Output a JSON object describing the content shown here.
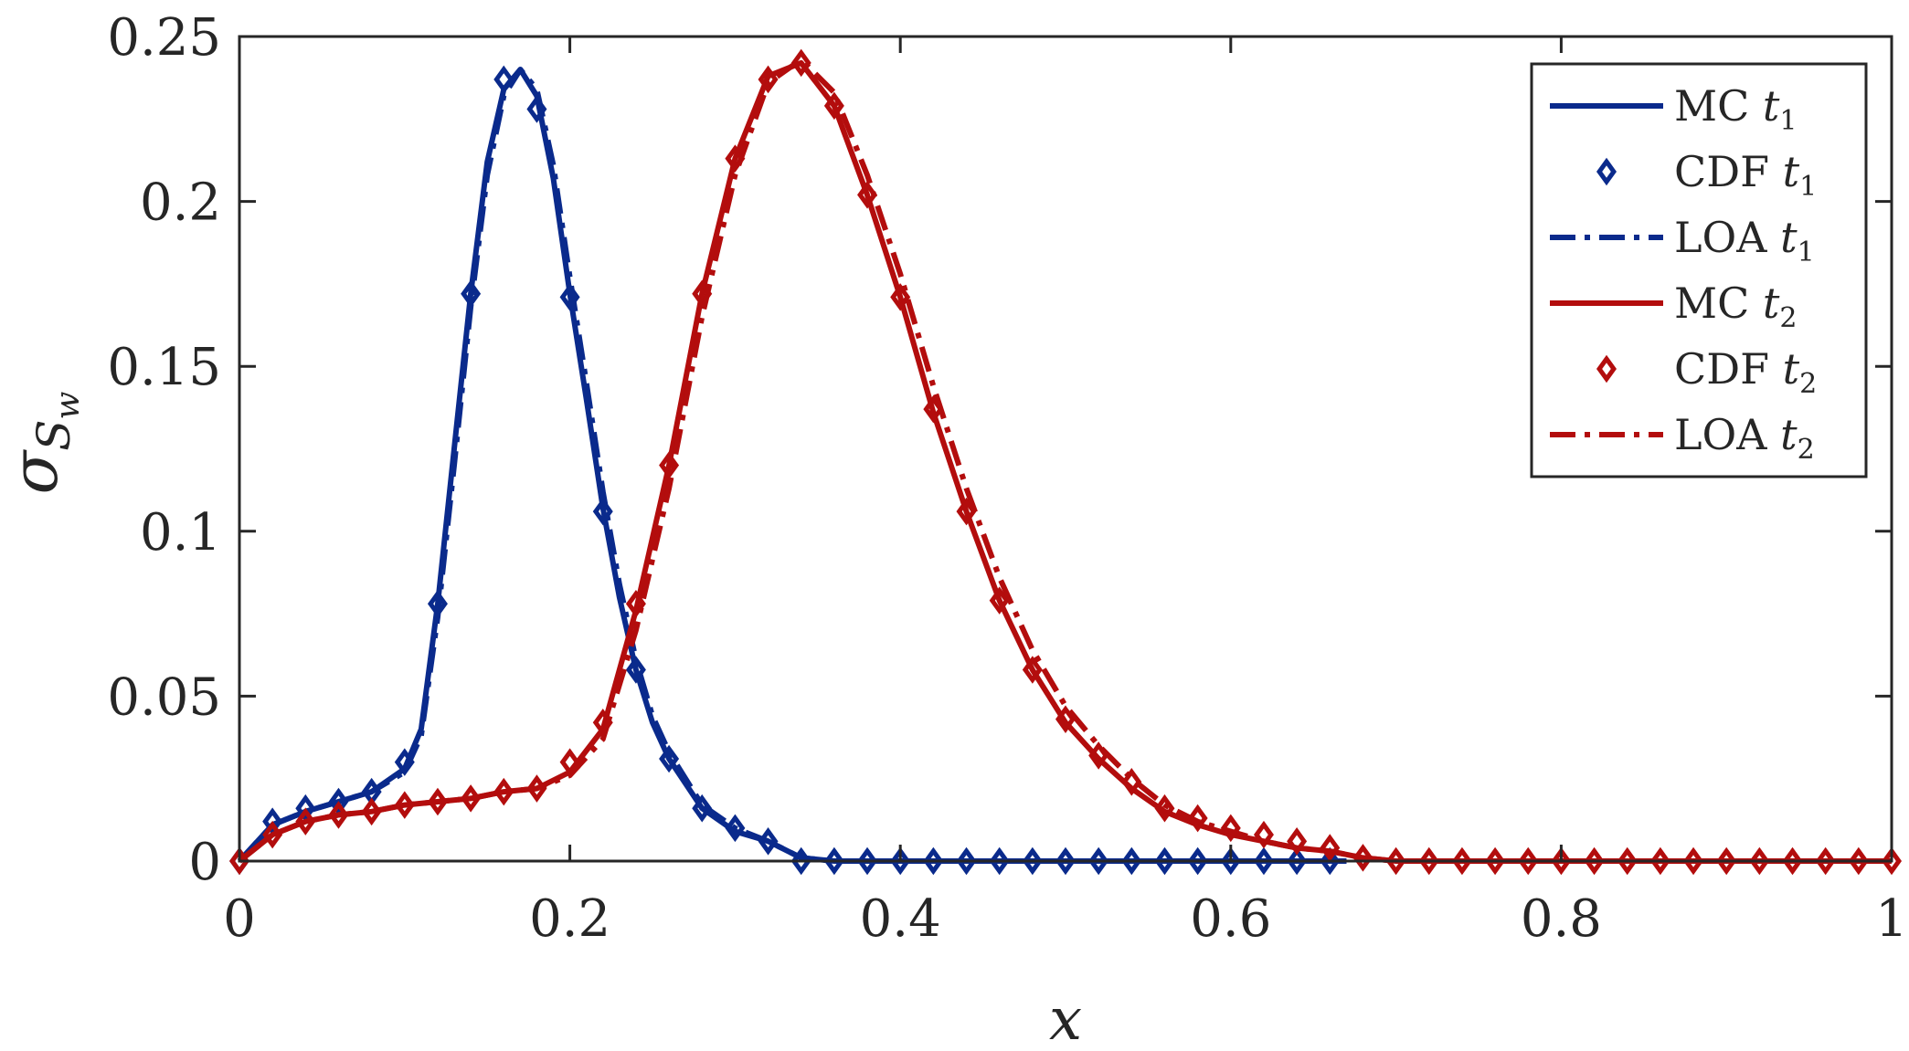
{
  "chart_data": {
    "type": "line",
    "title": "",
    "xlabel": "x",
    "ylabel_main": "σ",
    "ylabel_sub": "S",
    "ylabel_subsub": "w",
    "xlim": [
      0,
      1
    ],
    "ylim": [
      0,
      0.25
    ],
    "xticks": [
      0,
      0.2,
      0.4,
      0.6,
      0.8,
      1
    ],
    "xtick_labels": [
      "0",
      "0.2",
      "0.4",
      "0.6",
      "0.8",
      "1"
    ],
    "yticks": [
      0,
      0.05,
      0.1,
      0.15,
      0.2,
      0.25
    ],
    "ytick_labels": [
      "0",
      "0.05",
      "0.1",
      "0.15",
      "0.2",
      "0.25"
    ],
    "grid": false,
    "legend_position": "top-right",
    "colors": {
      "t1": "#0a2a8c",
      "t2": "#b30d0d",
      "axis": "#262626"
    },
    "series": [
      {
        "name": "MC t1",
        "label_main": "MC ",
        "label_var": "t",
        "label_sub": "1",
        "style": "solid",
        "color": "#0a2a8c",
        "x": [
          0,
          0.02,
          0.04,
          0.06,
          0.08,
          0.1,
          0.11,
          0.12,
          0.13,
          0.14,
          0.15,
          0.16,
          0.17,
          0.18,
          0.19,
          0.2,
          0.21,
          0.22,
          0.23,
          0.24,
          0.25,
          0.26,
          0.28,
          0.3,
          0.32,
          0.34,
          0.36,
          0.4,
          0.5,
          0.6,
          0.67
        ],
        "y": [
          0,
          0.011,
          0.015,
          0.018,
          0.021,
          0.028,
          0.04,
          0.078,
          0.125,
          0.172,
          0.212,
          0.234,
          0.24,
          0.232,
          0.207,
          0.172,
          0.14,
          0.107,
          0.08,
          0.058,
          0.042,
          0.031,
          0.016,
          0.009,
          0.006,
          0.001,
          0,
          0,
          0,
          0,
          0
        ]
      },
      {
        "name": "CDF t1",
        "label_main": "CDF ",
        "label_var": "t",
        "label_sub": "1",
        "style": "marker",
        "color": "#0a2a8c",
        "x": [
          0,
          0.02,
          0.04,
          0.06,
          0.08,
          0.1,
          0.12,
          0.14,
          0.16,
          0.18,
          0.2,
          0.22,
          0.24,
          0.26,
          0.28,
          0.3,
          0.32,
          0.34,
          0.36,
          0.38,
          0.4,
          0.42,
          0.44,
          0.46,
          0.48,
          0.5,
          0.52,
          0.54,
          0.56,
          0.58,
          0.6,
          0.62,
          0.64,
          0.66
        ],
        "y": [
          0,
          0.012,
          0.016,
          0.018,
          0.021,
          0.03,
          0.078,
          0.172,
          0.237,
          0.228,
          0.171,
          0.106,
          0.058,
          0.031,
          0.016,
          0.01,
          0.006,
          0,
          0,
          0,
          0,
          0,
          0,
          0,
          0,
          0,
          0,
          0,
          0,
          0,
          0,
          0,
          0,
          0
        ]
      },
      {
        "name": "LOA t1",
        "label_main": "LOA ",
        "label_var": "t",
        "label_sub": "1",
        "style": "dashdot",
        "color": "#0a2a8c",
        "x": [
          0,
          0.02,
          0.04,
          0.06,
          0.08,
          0.1,
          0.11,
          0.12,
          0.13,
          0.14,
          0.15,
          0.16,
          0.17,
          0.18,
          0.19,
          0.2,
          0.21,
          0.22,
          0.23,
          0.24,
          0.25,
          0.26,
          0.28,
          0.3,
          0.32,
          0.34,
          0.36,
          0.4,
          0.5,
          0.6,
          0.67
        ],
        "y": [
          0,
          0.011,
          0.015,
          0.018,
          0.021,
          0.027,
          0.038,
          0.074,
          0.12,
          0.168,
          0.208,
          0.232,
          0.24,
          0.234,
          0.211,
          0.177,
          0.145,
          0.112,
          0.084,
          0.061,
          0.044,
          0.033,
          0.017,
          0.01,
          0.006,
          0.001,
          0,
          0,
          0,
          0,
          0
        ]
      },
      {
        "name": "MC t2",
        "label_main": "MC ",
        "label_var": "t",
        "label_sub": "2",
        "style": "solid",
        "color": "#b30d0d",
        "x": [
          0,
          0.02,
          0.04,
          0.06,
          0.08,
          0.1,
          0.12,
          0.14,
          0.16,
          0.18,
          0.2,
          0.22,
          0.24,
          0.26,
          0.28,
          0.3,
          0.32,
          0.34,
          0.36,
          0.38,
          0.4,
          0.42,
          0.44,
          0.46,
          0.48,
          0.5,
          0.52,
          0.54,
          0.56,
          0.58,
          0.6,
          0.62,
          0.64,
          0.66,
          0.68,
          0.7,
          0.8,
          1
        ],
        "y": [
          0,
          0.008,
          0.012,
          0.014,
          0.015,
          0.017,
          0.018,
          0.019,
          0.021,
          0.022,
          0.027,
          0.04,
          0.076,
          0.12,
          0.172,
          0.213,
          0.238,
          0.242,
          0.229,
          0.202,
          0.171,
          0.136,
          0.106,
          0.079,
          0.058,
          0.042,
          0.031,
          0.022,
          0.015,
          0.011,
          0.008,
          0.006,
          0.004,
          0.003,
          0.001,
          0,
          0,
          0
        ]
      },
      {
        "name": "CDF t2",
        "label_main": "CDF ",
        "label_var": "t",
        "label_sub": "2",
        "style": "marker",
        "color": "#b30d0d",
        "x": [
          0,
          0.02,
          0.04,
          0.06,
          0.08,
          0.1,
          0.12,
          0.14,
          0.16,
          0.18,
          0.2,
          0.22,
          0.24,
          0.26,
          0.28,
          0.3,
          0.32,
          0.34,
          0.36,
          0.38,
          0.4,
          0.42,
          0.44,
          0.46,
          0.48,
          0.5,
          0.52,
          0.54,
          0.56,
          0.58,
          0.6,
          0.62,
          0.64,
          0.66,
          0.68,
          0.7,
          0.72,
          0.74,
          0.76,
          0.78,
          0.8,
          0.82,
          0.84,
          0.86,
          0.88,
          0.9,
          0.92,
          0.94,
          0.96,
          0.98,
          1
        ],
        "y": [
          0,
          0.008,
          0.012,
          0.014,
          0.015,
          0.017,
          0.018,
          0.019,
          0.021,
          0.022,
          0.03,
          0.042,
          0.078,
          0.12,
          0.172,
          0.213,
          0.237,
          0.242,
          0.229,
          0.202,
          0.171,
          0.137,
          0.106,
          0.079,
          0.058,
          0.043,
          0.032,
          0.024,
          0.016,
          0.013,
          0.01,
          0.008,
          0.006,
          0.004,
          0.001,
          0,
          0,
          0,
          0,
          0,
          0,
          0,
          0,
          0,
          0,
          0,
          0,
          0,
          0,
          0,
          0
        ]
      },
      {
        "name": "LOA t2",
        "label_main": "LOA ",
        "label_var": "t",
        "label_sub": "2",
        "style": "dashdot",
        "color": "#b30d0d",
        "x": [
          0,
          0.02,
          0.04,
          0.06,
          0.08,
          0.1,
          0.12,
          0.14,
          0.16,
          0.18,
          0.2,
          0.22,
          0.24,
          0.26,
          0.28,
          0.3,
          0.32,
          0.34,
          0.36,
          0.38,
          0.4,
          0.42,
          0.44,
          0.46,
          0.48,
          0.5,
          0.52,
          0.54,
          0.56,
          0.58,
          0.6,
          0.62,
          0.64,
          0.66,
          0.68,
          0.7,
          0.8,
          1
        ],
        "y": [
          0,
          0.008,
          0.012,
          0.014,
          0.015,
          0.017,
          0.018,
          0.019,
          0.021,
          0.022,
          0.026,
          0.037,
          0.07,
          0.113,
          0.165,
          0.208,
          0.236,
          0.243,
          0.233,
          0.208,
          0.178,
          0.144,
          0.113,
          0.086,
          0.064,
          0.047,
          0.035,
          0.025,
          0.017,
          0.012,
          0.009,
          0.006,
          0.004,
          0.003,
          0.001,
          0,
          0,
          0
        ]
      }
    ]
  }
}
